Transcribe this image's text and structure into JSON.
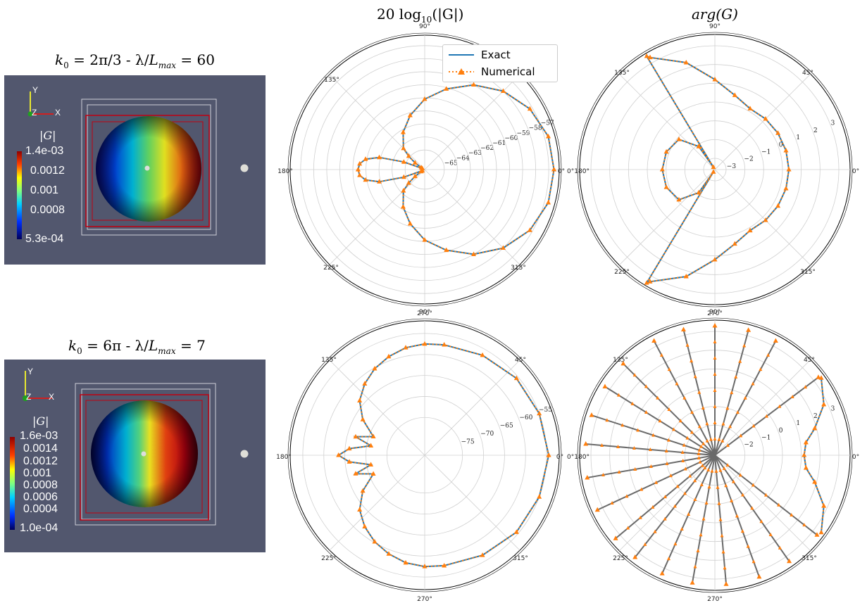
{
  "column_titles": {
    "magnitude": "20 log",
    "magnitude_sub": "10",
    "magnitude_tail": "(|G|)",
    "phase": "arg(G)"
  },
  "rows": [
    {
      "title": "k₀ = 2π/3 - λ/L_max = 60",
      "title_parts": {
        "k": "k",
        "k_sub": "0",
        "eq": " = 2π/3 - λ/",
        "L": "L",
        "L_sub": "max",
        "tail": " = 60"
      },
      "colorbar": {
        "title": "|G|",
        "labels": [
          "1.4e-03",
          "0.0012",
          "0.001",
          "0.0008",
          "5.3e-04"
        ]
      },
      "axes": {
        "y": "Y",
        "z": "Z",
        "x": "X"
      }
    },
    {
      "title": "k₀ = 6π - λ/L_max = 7",
      "title_parts": {
        "k": "k",
        "k_sub": "0",
        "eq": " = 6π - λ/",
        "L": "L",
        "L_sub": "max",
        "tail": " = 7"
      },
      "colorbar": {
        "title": "|G|",
        "labels": [
          "1.6e-03",
          "0.0014",
          "0.0012",
          "0.001",
          "0.0008",
          "0.0006",
          "0.0004",
          "1.0e-04"
        ]
      },
      "axes": {
        "y": "Y",
        "z": "Z",
        "x": "X"
      }
    }
  ],
  "legend": {
    "exact": "Exact",
    "numerical": "Numerical"
  },
  "colors": {
    "exact": "#1f77b4",
    "numerical": "#ff7f0e",
    "panel_bg": "#52576e"
  },
  "chart_data": [
    {
      "type": "polar-line",
      "id": "mag-row1",
      "angle_ticks": [
        "0°",
        "45°",
        "90°",
        "135°",
        "180°",
        "225°",
        "270°",
        "315°"
      ],
      "visible_angle_tick_labels": [
        "90°",
        "135°",
        "180°",
        "225°",
        "270°",
        "315°",
        "0°"
      ],
      "radial_ticks": [
        -65,
        -64,
        -63,
        -62,
        -61,
        -60,
        -59,
        -58,
        -57
      ],
      "rlim": [
        -66.5,
        -56.2
      ],
      "series": [
        {
          "name": "Exact",
          "style": "solid",
          "angles_deg": [
            0,
            15,
            30,
            45,
            60,
            75,
            90,
            105,
            120,
            135,
            140,
            145,
            150,
            155,
            160,
            165,
            170,
            175,
            180,
            185,
            190,
            195,
            200,
            205,
            210,
            215,
            220,
            225,
            240,
            255,
            270,
            285,
            300,
            315,
            330,
            345,
            360
          ],
          "values": [
            -56.6,
            -56.7,
            -57.2,
            -58.0,
            -59.0,
            -60.1,
            -61.1,
            -62.2,
            -63.2,
            -64.2,
            -64.9,
            -65.6,
            -66.2,
            -66.3,
            -64.8,
            -62.9,
            -61.9,
            -61.5,
            -61.4,
            -61.5,
            -61.9,
            -62.9,
            -64.8,
            -66.3,
            -66.2,
            -65.6,
            -64.9,
            -64.2,
            -63.2,
            -62.2,
            -61.1,
            -60.1,
            -59.0,
            -58.0,
            -57.2,
            -56.7,
            -56.6
          ]
        },
        {
          "name": "Numerical",
          "style": "dotted-triangle",
          "angles_deg": [
            0,
            15,
            30,
            45,
            60,
            75,
            90,
            105,
            120,
            135,
            140,
            145,
            150,
            155,
            160,
            165,
            170,
            175,
            180,
            185,
            190,
            195,
            200,
            205,
            210,
            215,
            220,
            225,
            240,
            255,
            270,
            285,
            300,
            315,
            330,
            345,
            360
          ],
          "values": [
            -56.6,
            -56.7,
            -57.2,
            -58.0,
            -59.0,
            -60.1,
            -61.1,
            -62.2,
            -63.2,
            -64.2,
            -64.9,
            -65.6,
            -66.2,
            -66.3,
            -64.8,
            -62.9,
            -61.9,
            -61.5,
            -61.4,
            -61.5,
            -61.9,
            -62.9,
            -64.8,
            -66.3,
            -66.2,
            -65.6,
            -64.9,
            -64.2,
            -63.2,
            -62.2,
            -61.1,
            -60.1,
            -59.0,
            -58.0,
            -57.2,
            -56.7,
            -56.6
          ]
        }
      ]
    },
    {
      "type": "polar-line",
      "id": "phase-row1",
      "angle_ticks": [
        "0°",
        "45°",
        "90°",
        "135°",
        "180°",
        "225°",
        "270°",
        "315°"
      ],
      "visible_angle_tick_labels": [
        "90°",
        "45°",
        "135°",
        "0°180°",
        "0°",
        "225°",
        "315°",
        "270°"
      ],
      "radial_ticks": [
        -3,
        -2,
        -1,
        0,
        1,
        2,
        3
      ],
      "rlim": [
        -3.6,
        3.6
      ],
      "series": [
        {
          "name": "Exact",
          "style": "solid",
          "angles_deg": [
            -60,
            -45,
            -30,
            -15,
            0,
            15,
            30,
            45,
            60,
            75,
            90,
            105,
            120,
            121,
            121,
            125,
            140,
            160,
            180,
            200,
            220,
            235,
            239,
            239,
            240,
            255,
            270,
            285,
            300
          ],
          "values": [
            0.15,
            0.22,
            0.28,
            0.32,
            0.34,
            0.32,
            0.28,
            0.22,
            0.15,
            0.5,
            1.2,
            2.3,
            3.3,
            3.45,
            -3.45,
            -2.1,
            -1.1,
            -0.85,
            -0.8,
            -0.85,
            -1.1,
            -2.1,
            -3.45,
            3.45,
            3.3,
            2.3,
            1.2,
            0.5,
            0.15
          ]
        },
        {
          "name": "Numerical",
          "style": "dotted-triangle",
          "angles_deg": [
            -60,
            -45,
            -30,
            -15,
            0,
            15,
            30,
            45,
            60,
            75,
            90,
            105,
            120,
            121,
            121,
            125,
            140,
            160,
            180,
            200,
            220,
            235,
            239,
            239,
            240,
            255,
            270,
            285,
            300
          ],
          "values": [
            0.15,
            0.22,
            0.28,
            0.32,
            0.34,
            0.32,
            0.28,
            0.22,
            0.15,
            0.5,
            1.2,
            2.3,
            3.3,
            3.45,
            -3.45,
            -2.1,
            -1.1,
            -0.85,
            -0.8,
            -0.85,
            -1.1,
            -2.1,
            -3.45,
            3.45,
            3.3,
            2.3,
            1.2,
            0.5,
            0.15
          ]
        }
      ]
    },
    {
      "type": "polar-line",
      "id": "mag-row2",
      "angle_ticks": [
        "0°",
        "45°",
        "90°",
        "135°",
        "180°",
        "225°",
        "270°",
        "315°"
      ],
      "visible_angle_tick_labels": [
        "90°",
        "45°",
        "135°",
        "180°",
        "0°",
        "225°",
        "315°",
        "270°"
      ],
      "radial_ticks": [
        -75,
        -70,
        -65,
        -60,
        -55
      ],
      "rlim": [
        -84,
        -52
      ],
      "series": [
        {
          "name": "Exact",
          "style": "solid",
          "angles_deg": [
            0,
            20,
            40,
            60,
            80,
            90,
            100,
            110,
            120,
            130,
            140,
            150,
            160,
            165,
            170,
            175,
            180,
            185,
            190,
            195,
            200,
            210,
            220,
            230,
            240,
            250,
            260,
            270,
            280,
            300,
            320,
            340,
            360
          ],
          "values": [
            -54.5,
            -55.0,
            -55.5,
            -56.5,
            -57.3,
            -57.5,
            -58.0,
            -59.0,
            -60.2,
            -61.8,
            -63.8,
            -67.0,
            -71.0,
            -67.0,
            -71.0,
            -66.0,
            -63.5,
            -66.0,
            -71.0,
            -67.0,
            -71.0,
            -67.0,
            -63.8,
            -61.8,
            -60.2,
            -59.0,
            -58.0,
            -57.5,
            -57.3,
            -56.5,
            -55.5,
            -55.0,
            -54.5
          ]
        },
        {
          "name": "Numerical",
          "style": "dotted-triangle",
          "angles_deg": [
            0,
            20,
            40,
            60,
            80,
            90,
            100,
            110,
            120,
            130,
            140,
            150,
            160,
            165,
            170,
            175,
            180,
            185,
            190,
            195,
            200,
            210,
            220,
            230,
            240,
            250,
            260,
            270,
            280,
            300,
            320,
            340,
            360
          ],
          "values": [
            -54.5,
            -55.0,
            -55.5,
            -56.5,
            -57.3,
            -57.5,
            -58.0,
            -59.0,
            -60.2,
            -61.8,
            -63.8,
            -67.0,
            -71.0,
            -67.0,
            -71.0,
            -66.0,
            -63.5,
            -66.0,
            -71.0,
            -67.0,
            -71.0,
            -67.0,
            -63.8,
            -61.8,
            -60.2,
            -59.0,
            -58.0,
            -57.5,
            -57.3,
            -56.5,
            -55.5,
            -55.0,
            -54.5
          ]
        }
      ]
    },
    {
      "type": "polar-line",
      "id": "phase-row2",
      "angle_ticks": [
        "0°",
        "45°",
        "90°",
        "135°",
        "180°",
        "225°",
        "270°",
        "315°"
      ],
      "visible_angle_tick_labels": [
        "90°",
        "45°",
        "135°",
        "0°180°",
        "0°",
        "225°",
        "315°",
        "270°"
      ],
      "radial_ticks": [
        -2,
        -1,
        0,
        1,
        2,
        3
      ],
      "rlim": [
        -3.6,
        3.6
      ],
      "series": [
        {
          "name": "Exact",
          "style": "solid",
          "angles_deg": [
            -36,
            -25,
            -15,
            -8,
            0,
            8,
            15,
            25,
            36
          ],
          "values": [
            3.4,
            2.8,
            1.9,
            1.3,
            1.15,
            1.3,
            1.9,
            2.8,
            3.4
          ],
          "spokes_deg": [
            37,
            62,
            75,
            90,
            104,
            118,
            135,
            148,
            162,
            175,
            190,
            205,
            220,
            232,
            246,
            260,
            275,
            290,
            305,
            322
          ]
        },
        {
          "name": "Numerical",
          "style": "dotted-triangle",
          "angles_deg": [
            -36,
            -25,
            -15,
            -8,
            0,
            8,
            15,
            25,
            36
          ],
          "values": [
            3.4,
            2.8,
            1.9,
            1.3,
            1.15,
            1.3,
            1.9,
            2.8,
            3.4
          ],
          "spokes_deg": [
            37,
            62,
            75,
            90,
            104,
            118,
            135,
            148,
            162,
            175,
            190,
            205,
            220,
            232,
            246,
            260,
            275,
            290,
            305,
            322
          ]
        }
      ]
    }
  ]
}
